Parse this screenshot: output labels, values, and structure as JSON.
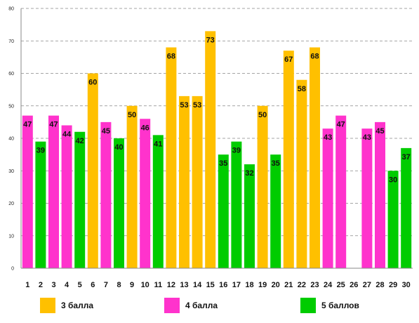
{
  "chart_data": {
    "type": "bar",
    "categories": [
      "1",
      "2",
      "3",
      "4",
      "5",
      "6",
      "7",
      "8",
      "9",
      "10",
      "11",
      "12",
      "13",
      "14",
      "15",
      "16",
      "17",
      "18",
      "19",
      "20",
      "21",
      "22",
      "23",
      "24",
      "25",
      "26",
      "27",
      "28",
      "29",
      "30"
    ],
    "values": [
      47,
      39,
      47,
      44,
      42,
      60,
      45,
      40,
      50,
      46,
      41,
      68,
      53,
      53,
      73,
      35,
      39,
      32,
      50,
      35,
      67,
      58,
      68,
      43,
      47,
      null,
      43,
      45,
      30,
      37
    ],
    "value_labels": [
      "47",
      "39",
      "47",
      "44",
      "42",
      "60",
      "45",
      "40",
      "50",
      "46",
      "41",
      "68",
      "53",
      "53",
      "73",
      "35",
      "39",
      "32",
      "50",
      "35",
      "67",
      "58",
      "68",
      "43",
      "47",
      "",
      "43",
      "45",
      "30",
      "37"
    ],
    "groups": [
      "4",
      "5",
      "4",
      "4",
      "5",
      "3",
      "4",
      "5",
      "3",
      "4",
      "5",
      "3",
      "3",
      "3",
      "3",
      "5",
      "5",
      "5",
      "3",
      "5",
      "3",
      "3",
      "3",
      "4",
      "4",
      "",
      "4",
      "4",
      "5",
      "5"
    ],
    "series": [
      {
        "key": "3",
        "name": "3 балла",
        "color": "#FFC000"
      },
      {
        "key": "4",
        "name": "4 балла",
        "color": "#FF33CC"
      },
      {
        "key": "5",
        "name": "5 баллов",
        "color": "#00CC00"
      }
    ],
    "title": "",
    "xlabel": "",
    "ylabel": "",
    "ylim": [
      0,
      80
    ],
    "yticks": [
      0,
      10,
      20,
      30,
      40,
      50,
      60,
      70,
      80
    ],
    "ytick_labels": [
      "0",
      "10",
      "20",
      "30",
      "40",
      "50",
      "60",
      "70",
      "80"
    ],
    "grid": true,
    "legend_position": "bottom"
  }
}
